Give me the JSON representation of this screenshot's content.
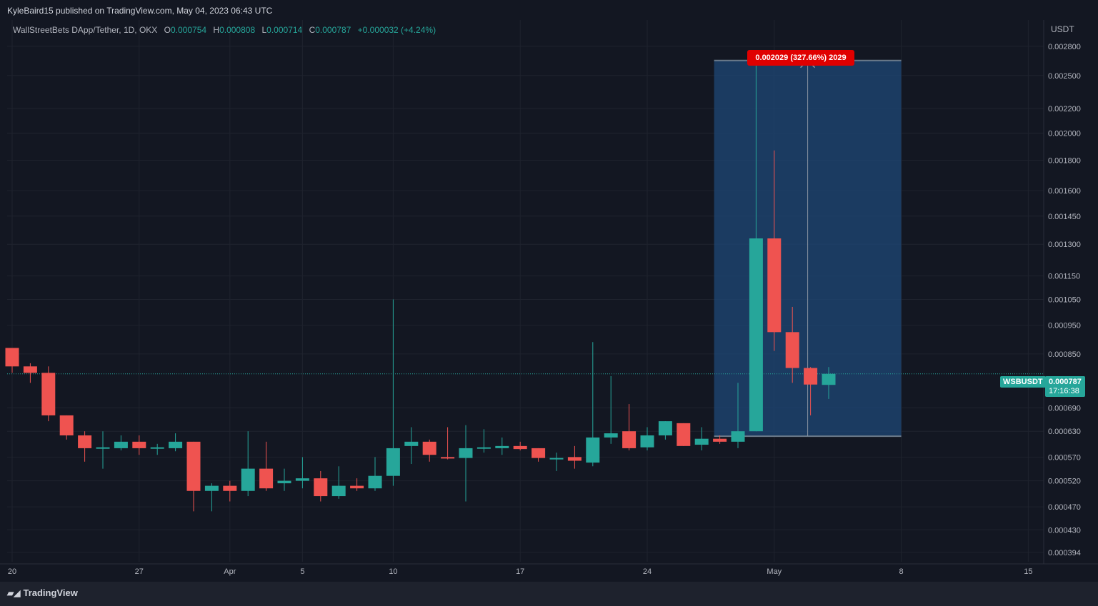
{
  "header": {
    "publisher_line": "KyleBaird15 published on TradingView.com, May 04, 2023 06:43 UTC"
  },
  "legend": {
    "symbol": "WallStreetBets DApp/Tether, 1D, OKX",
    "o_label": "O",
    "o_value": "0.000754",
    "h_label": "H",
    "h_value": "0.000808",
    "l_label": "L",
    "l_value": "0.000714",
    "c_label": "C",
    "c_value": "0.000787",
    "change": "+0.000032 (+4.24%)"
  },
  "axis": {
    "currency": "USDT"
  },
  "measure": {
    "label": "0.002029 (327.66%) 2029"
  },
  "last_price": {
    "symbol": "WSBUSDT",
    "price": "0.000787",
    "countdown": "17:16:38"
  },
  "footer": {
    "brand": "TradingView"
  },
  "colors": {
    "up": "#26a69a",
    "down": "#ef5350",
    "background": "#131722",
    "measure_box": "#1e4a7a"
  },
  "chart_data": {
    "type": "candlestick",
    "scale": "log",
    "ylim": [
      0.00038,
      0.0031
    ],
    "y_ticks": [
      "0.002800",
      "0.002500",
      "0.002200",
      "0.002000",
      "0.001800",
      "0.001600",
      "0.001450",
      "0.001300",
      "0.001150",
      "0.001050",
      "0.000950",
      "0.000850",
      "0.000690",
      "0.000630",
      "0.000570",
      "0.000520",
      "0.000470",
      "0.000430",
      "0.000394"
    ],
    "x_ticks": [
      {
        "label": "20",
        "index": 0
      },
      {
        "label": "27",
        "index": 7
      },
      {
        "label": "Apr",
        "index": 12
      },
      {
        "label": "5",
        "index": 16
      },
      {
        "label": "10",
        "index": 21
      },
      {
        "label": "17",
        "index": 28
      },
      {
        "label": "24",
        "index": 35
      },
      {
        "label": "May",
        "index": 42
      },
      {
        "label": "8",
        "index": 49
      },
      {
        "label": "15",
        "index": 56
      }
    ],
    "candles": [
      {
        "o": 0.00087,
        "h": 0.00087,
        "l": 0.00079,
        "c": 0.00081
      },
      {
        "o": 0.00081,
        "h": 0.00082,
        "l": 0.00076,
        "c": 0.00079
      },
      {
        "o": 0.00079,
        "h": 0.00081,
        "l": 0.000655,
        "c": 0.00067
      },
      {
        "o": 0.00067,
        "h": 0.00067,
        "l": 0.00061,
        "c": 0.00062
      },
      {
        "o": 0.00062,
        "h": 0.00063,
        "l": 0.00056,
        "c": 0.00059
      },
      {
        "o": 0.00059,
        "h": 0.00063,
        "l": 0.000545,
        "c": 0.000592
      },
      {
        "o": 0.00059,
        "h": 0.00062,
        "l": 0.000585,
        "c": 0.000605
      },
      {
        "o": 0.000605,
        "h": 0.00062,
        "l": 0.000575,
        "c": 0.00059
      },
      {
        "o": 0.00059,
        "h": 0.0006,
        "l": 0.000575,
        "c": 0.000592
      },
      {
        "o": 0.00059,
        "h": 0.000625,
        "l": 0.000583,
        "c": 0.000605
      },
      {
        "o": 0.000605,
        "h": 0.000605,
        "l": 0.000462,
        "c": 0.0005
      },
      {
        "o": 0.0005,
        "h": 0.000515,
        "l": 0.000462,
        "c": 0.00051
      },
      {
        "o": 0.00051,
        "h": 0.00052,
        "l": 0.00048,
        "c": 0.0005
      },
      {
        "o": 0.0005,
        "h": 0.00063,
        "l": 0.00049,
        "c": 0.000545
      },
      {
        "o": 0.000545,
        "h": 0.000605,
        "l": 0.0005,
        "c": 0.000505
      },
      {
        "o": 0.000515,
        "h": 0.000545,
        "l": 0.0005,
        "c": 0.00052
      },
      {
        "o": 0.00052,
        "h": 0.00057,
        "l": 0.000505,
        "c": 0.000525
      },
      {
        "o": 0.000525,
        "h": 0.00054,
        "l": 0.00048,
        "c": 0.00049
      },
      {
        "o": 0.00049,
        "h": 0.00055,
        "l": 0.000485,
        "c": 0.00051
      },
      {
        "o": 0.00051,
        "h": 0.000525,
        "l": 0.0005,
        "c": 0.000505
      },
      {
        "o": 0.000505,
        "h": 0.00057,
        "l": 0.0005,
        "c": 0.00053
      },
      {
        "o": 0.00053,
        "h": 0.00105,
        "l": 0.00051,
        "c": 0.00059
      },
      {
        "o": 0.000595,
        "h": 0.00064,
        "l": 0.000555,
        "c": 0.000605
      },
      {
        "o": 0.000605,
        "h": 0.00061,
        "l": 0.00056,
        "c": 0.000575
      },
      {
        "o": 0.00057,
        "h": 0.00064,
        "l": 0.000565,
        "c": 0.000568
      },
      {
        "o": 0.000568,
        "h": 0.000645,
        "l": 0.00048,
        "c": 0.00059
      },
      {
        "o": 0.00059,
        "h": 0.000635,
        "l": 0.00058,
        "c": 0.000592
      },
      {
        "o": 0.00059,
        "h": 0.000615,
        "l": 0.000575,
        "c": 0.000595
      },
      {
        "o": 0.000595,
        "h": 0.000605,
        "l": 0.000585,
        "c": 0.000588
      },
      {
        "o": 0.00059,
        "h": 0.00059,
        "l": 0.00056,
        "c": 0.000568
      },
      {
        "o": 0.000568,
        "h": 0.00058,
        "l": 0.00054,
        "c": 0.000568
      },
      {
        "o": 0.00057,
        "h": 0.000595,
        "l": 0.000545,
        "c": 0.000562
      },
      {
        "o": 0.000558,
        "h": 0.00089,
        "l": 0.00055,
        "c": 0.000615
      },
      {
        "o": 0.000615,
        "h": 0.00078,
        "l": 0.0006,
        "c": 0.000625
      },
      {
        "o": 0.00063,
        "h": 0.0007,
        "l": 0.000585,
        "c": 0.00059
      },
      {
        "o": 0.000592,
        "h": 0.00064,
        "l": 0.000585,
        "c": 0.00062
      },
      {
        "o": 0.00062,
        "h": 0.000655,
        "l": 0.00061,
        "c": 0.000655
      },
      {
        "o": 0.00065,
        "h": 0.00065,
        "l": 0.000595,
        "c": 0.000595
      },
      {
        "o": 0.000598,
        "h": 0.00064,
        "l": 0.000585,
        "c": 0.000612
      },
      {
        "o": 0.000612,
        "h": 0.00062,
        "l": 0.0006,
        "c": 0.000605
      },
      {
        "o": 0.000605,
        "h": 0.00076,
        "l": 0.00059,
        "c": 0.00063
      },
      {
        "o": 0.00063,
        "h": 0.00265,
        "l": 0.00063,
        "c": 0.00133
      },
      {
        "o": 0.00133,
        "h": 0.00187,
        "l": 0.00086,
        "c": 0.000925
      },
      {
        "o": 0.000925,
        "h": 0.00102,
        "l": 0.00076,
        "c": 0.000805
      },
      {
        "o": 0.000805,
        "h": 0.000808,
        "l": 0.00067,
        "c": 0.000755
      },
      {
        "o": 0.000754,
        "h": 0.000808,
        "l": 0.000714,
        "c": 0.000787
      }
    ],
    "measure": {
      "from_index": 39,
      "to_index": 49,
      "low": 0.000618,
      "high": 0.00265
    },
    "last_price": 0.000787
  }
}
